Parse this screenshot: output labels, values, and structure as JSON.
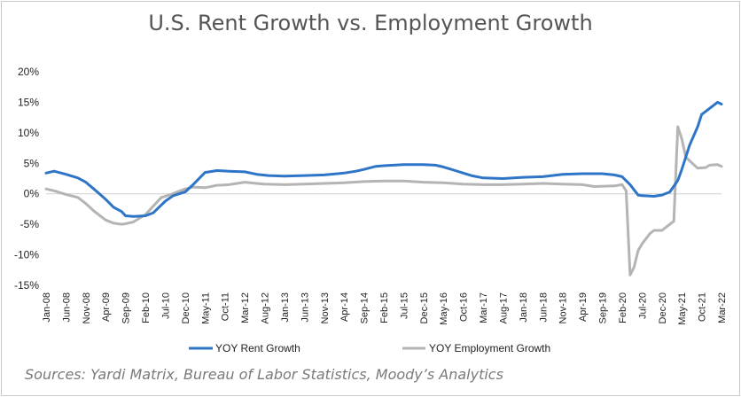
{
  "chart_data": {
    "type": "line",
    "title": "U.S. Rent Growth vs. Employment Growth",
    "source": "Sources: Yardi Matrix, Bureau of Labor Statistics, Moody’s Analytics",
    "ylim": [
      -15,
      20
    ],
    "yticks": [
      20,
      15,
      10,
      5,
      0,
      -5,
      -10,
      -15
    ],
    "ytick_labels": [
      "20%",
      "15%",
      "10%",
      "5%",
      "0%",
      "-5%",
      "-10%",
      "-15%"
    ],
    "x_start": "Jan-08",
    "x_end": "Mar-22",
    "x_tick_labels": [
      "Jan-08",
      "Jun-08",
      "Nov-08",
      "Apr-09",
      "Sep-09",
      "Feb-10",
      "Jul-10",
      "Dec-10",
      "May-11",
      "Oct-11",
      "Mar-12",
      "Aug-12",
      "Jan-13",
      "Jun-13",
      "Nov-13",
      "Apr-14",
      "Sep-14",
      "Feb-15",
      "Jul-15",
      "Dec-15",
      "May-16",
      "Oct-16",
      "Mar-17",
      "Aug-17",
      "Jan-18",
      "Jun-18",
      "Nov-18",
      "Apr-19",
      "Sep-19",
      "Feb-20",
      "Jul-20",
      "Dec-20",
      "May-21",
      "Oct-21",
      "Mar-22"
    ],
    "legend_position": "bottom",
    "series": [
      {
        "name": "YOY Rent Growth",
        "color": "#2E75C8",
        "points": [
          [
            "Jan-08",
            3.4
          ],
          [
            "Mar-08",
            3.7
          ],
          [
            "Jun-08",
            3.2
          ],
          [
            "Sep-08",
            2.6
          ],
          [
            "Nov-08",
            1.9
          ],
          [
            "Jan-09",
            0.8
          ],
          [
            "Apr-09",
            -0.9
          ],
          [
            "Jun-09",
            -2.2
          ],
          [
            "Aug-09",
            -2.9
          ],
          [
            "Sep-09",
            -3.6
          ],
          [
            "Nov-09",
            -3.7
          ],
          [
            "Feb-10",
            -3.6
          ],
          [
            "Apr-10",
            -3.1
          ],
          [
            "Jul-10",
            -1.2
          ],
          [
            "Sep-10",
            -0.3
          ],
          [
            "Dec-10",
            0.3
          ],
          [
            "Feb-11",
            1.5
          ],
          [
            "May-11",
            3.5
          ],
          [
            "Aug-11",
            3.8
          ],
          [
            "Nov-11",
            3.7
          ],
          [
            "Mar-12",
            3.6
          ],
          [
            "Jun-12",
            3.2
          ],
          [
            "Sep-12",
            3.0
          ],
          [
            "Jan-13",
            2.9
          ],
          [
            "Jun-13",
            3.0
          ],
          [
            "Nov-13",
            3.1
          ],
          [
            "Apr-14",
            3.4
          ],
          [
            "Jul-14",
            3.7
          ],
          [
            "Sep-14",
            4.0
          ],
          [
            "Dec-14",
            4.5
          ],
          [
            "Feb-15",
            4.6
          ],
          [
            "Jul-15",
            4.8
          ],
          [
            "Dec-15",
            4.8
          ],
          [
            "Mar-16",
            4.7
          ],
          [
            "May-16",
            4.4
          ],
          [
            "Aug-16",
            3.8
          ],
          [
            "Oct-16",
            3.4
          ],
          [
            "Dec-16",
            3.0
          ],
          [
            "Mar-17",
            2.6
          ],
          [
            "Aug-17",
            2.5
          ],
          [
            "Jan-18",
            2.7
          ],
          [
            "Jun-18",
            2.8
          ],
          [
            "Nov-18",
            3.2
          ],
          [
            "Apr-19",
            3.3
          ],
          [
            "Sep-19",
            3.3
          ],
          [
            "Dec-19",
            3.1
          ],
          [
            "Feb-20",
            2.8
          ],
          [
            "Apr-20",
            1.5
          ],
          [
            "Jun-20",
            -0.2
          ],
          [
            "Jul-20",
            -0.3
          ],
          [
            "Oct-20",
            -0.4
          ],
          [
            "Dec-20",
            -0.2
          ],
          [
            "Feb-21",
            0.3
          ],
          [
            "Apr-21",
            2.2
          ],
          [
            "May-21",
            4.0
          ],
          [
            "Jul-21",
            8.0
          ],
          [
            "Sep-21",
            11.0
          ],
          [
            "Oct-21",
            13.0
          ],
          [
            "Dec-21",
            14.0
          ],
          [
            "Feb-22",
            15.0
          ],
          [
            "Mar-22",
            14.7
          ]
        ]
      },
      {
        "name": "YOY Employment Growth",
        "color": "#B4B4B4",
        "points": [
          [
            "Jan-08",
            0.8
          ],
          [
            "Mar-08",
            0.5
          ],
          [
            "Jun-08",
            -0.1
          ],
          [
            "Sep-08",
            -0.6
          ],
          [
            "Nov-08",
            -1.6
          ],
          [
            "Jan-09",
            -2.8
          ],
          [
            "Apr-09",
            -4.3
          ],
          [
            "Jun-09",
            -4.8
          ],
          [
            "Aug-09",
            -5.0
          ],
          [
            "Sep-09",
            -4.9
          ],
          [
            "Nov-09",
            -4.6
          ],
          [
            "Feb-10",
            -3.4
          ],
          [
            "Apr-10",
            -2.0
          ],
          [
            "Jun-10",
            -0.6
          ],
          [
            "Aug-10",
            -0.2
          ],
          [
            "Oct-10",
            0.3
          ],
          [
            "Dec-10",
            0.8
          ],
          [
            "Feb-11",
            1.1
          ],
          [
            "May-11",
            1.0
          ],
          [
            "Aug-11",
            1.4
          ],
          [
            "Nov-11",
            1.5
          ],
          [
            "Mar-12",
            1.9
          ],
          [
            "Jun-12",
            1.7
          ],
          [
            "Aug-12",
            1.6
          ],
          [
            "Jan-13",
            1.5
          ],
          [
            "Jun-13",
            1.6
          ],
          [
            "Nov-13",
            1.7
          ],
          [
            "Apr-14",
            1.8
          ],
          [
            "Sep-14",
            2.0
          ],
          [
            "Feb-15",
            2.1
          ],
          [
            "Jul-15",
            2.1
          ],
          [
            "Dec-15",
            1.9
          ],
          [
            "May-16",
            1.8
          ],
          [
            "Oct-16",
            1.6
          ],
          [
            "Mar-17",
            1.5
          ],
          [
            "Aug-17",
            1.5
          ],
          [
            "Jan-18",
            1.6
          ],
          [
            "Jun-18",
            1.7
          ],
          [
            "Nov-18",
            1.6
          ],
          [
            "Apr-19",
            1.5
          ],
          [
            "Jul-19",
            1.2
          ],
          [
            "Dec-19",
            1.3
          ],
          [
            "Feb-20",
            1.5
          ],
          [
            "Mar-20",
            0.5
          ],
          [
            "Apr-20",
            -13.3
          ],
          [
            "May-20",
            -12.0
          ],
          [
            "Jun-20",
            -9.3
          ],
          [
            "Jul-20",
            -8.2
          ],
          [
            "Sep-20",
            -6.5
          ],
          [
            "Oct-20",
            -6.0
          ],
          [
            "Dec-20",
            -6.0
          ],
          [
            "Feb-21",
            -5.0
          ],
          [
            "Mar-21",
            -4.5
          ],
          [
            "Apr-21",
            11.0
          ],
          [
            "May-21",
            9.0
          ],
          [
            "Jun-21",
            6.0
          ],
          [
            "Aug-21",
            4.8
          ],
          [
            "Sep-21",
            4.2
          ],
          [
            "Nov-21",
            4.3
          ],
          [
            "Dec-21",
            4.7
          ],
          [
            "Feb-22",
            4.8
          ],
          [
            "Mar-22",
            4.5
          ]
        ]
      }
    ]
  }
}
